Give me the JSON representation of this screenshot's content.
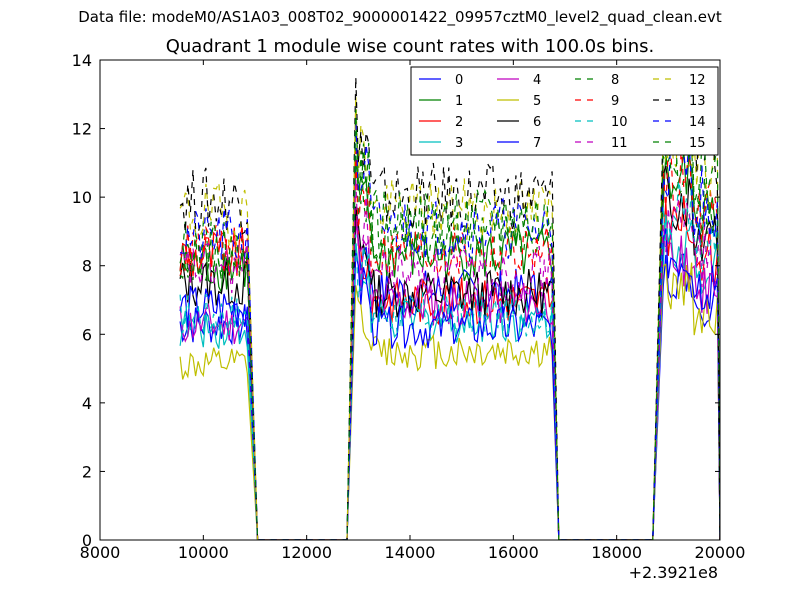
{
  "figure": {
    "suptitle": "Data file: modeM0/AS1A03_008T02_9000001422_09957cztM0_level2_quad_clean.evt",
    "title": "Quadrant 1 module wise count rates with 100.0s bins."
  },
  "chart_data": {
    "type": "line",
    "title": "Quadrant 1 module wise count rates with 100.0s bins.",
    "xlabel": "",
    "ylabel": "",
    "x_offset_label": "+2.3921e8",
    "xlim": [
      8000,
      20000
    ],
    "ylim": [
      0,
      14
    ],
    "xticks": [
      8000,
      10000,
      12000,
      14000,
      16000,
      18000,
      20000
    ],
    "yticks": [
      0,
      2,
      4,
      6,
      8,
      10,
      12,
      14
    ],
    "grid": false,
    "legend": {
      "placement": "top-right",
      "columns": 4
    },
    "segments": [
      {
        "x_start": 9550,
        "x_end": 10850,
        "drop_to_zero_at": 11050
      },
      {
        "x_start": 12950,
        "x_end": 16750,
        "rise_from_zero_at": 12780,
        "drop_to_zero_at": 16880
      },
      {
        "x_start": 18900,
        "x_end": 19950,
        "rise_from_zero_at": 18700,
        "drop_to_zero_at": 20000
      }
    ],
    "series": [
      {
        "name": "0",
        "color": "#0000ff",
        "dash": "solid",
        "levels": [
          6.3,
          7.2,
          7.8
        ]
      },
      {
        "name": "1",
        "color": "#008000",
        "dash": "solid",
        "levels": [
          8.0,
          8.3,
          10.5
        ]
      },
      {
        "name": "2",
        "color": "#ff0000",
        "dash": "solid",
        "levels": [
          8.3,
          7.0,
          9.2
        ]
      },
      {
        "name": "3",
        "color": "#00bfbf",
        "dash": "solid",
        "levels": [
          6.2,
          6.4,
          8.8
        ]
      },
      {
        "name": "4",
        "color": "#bf00bf",
        "dash": "solid",
        "levels": [
          6.3,
          6.9,
          8.1
        ]
      },
      {
        "name": "5",
        "color": "#bfbf00",
        "dash": "solid",
        "levels": [
          5.1,
          5.5,
          7.4
        ]
      },
      {
        "name": "6",
        "color": "#000000",
        "dash": "solid",
        "levels": [
          7.5,
          7.2,
          10.0
        ]
      },
      {
        "name": "7",
        "color": "#0000ff",
        "dash": "solid",
        "levels": [
          6.8,
          6.2,
          8.3
        ]
      },
      {
        "name": "8",
        "color": "#008000",
        "dash": "dashed",
        "levels": [
          8.5,
          8.8,
          11.0
        ]
      },
      {
        "name": "9",
        "color": "#ff0000",
        "dash": "dashed",
        "levels": [
          8.4,
          8.4,
          10.6
        ]
      },
      {
        "name": "10",
        "color": "#00bfbf",
        "dash": "dashed",
        "levels": [
          6.6,
          6.6,
          9.6
        ]
      },
      {
        "name": "11",
        "color": "#bf00bf",
        "dash": "dashed",
        "levels": [
          7.9,
          7.8,
          9.2
        ]
      },
      {
        "name": "12",
        "color": "#bfbf00",
        "dash": "dashed",
        "levels": [
          9.5,
          9.6,
          12.0
        ]
      },
      {
        "name": "13",
        "color": "#000000",
        "dash": "dashed",
        "levels": [
          9.9,
          10.0,
          12.5
        ]
      },
      {
        "name": "14",
        "color": "#0000ff",
        "dash": "dashed",
        "levels": [
          8.8,
          9.1,
          11.0
        ]
      },
      {
        "name": "15",
        "color": "#008000",
        "dash": "dashed",
        "levels": [
          8.4,
          9.3,
          11.8
        ]
      }
    ]
  }
}
